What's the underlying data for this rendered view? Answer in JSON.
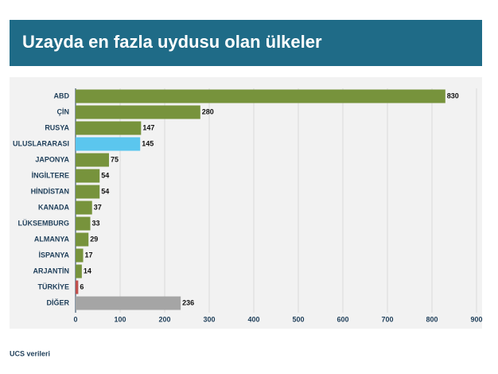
{
  "chart_data": {
    "type": "bar",
    "orientation": "horizontal",
    "title": "Uzayda en fazla uydusu olan ülkeler",
    "source": "UCS verileri",
    "categories": [
      "ABD",
      "ÇİN",
      "RUSYA",
      "ULUSLARARASI",
      "JAPONYA",
      "İNGİLTERE",
      "HİNDİSTAN",
      "KANADA",
      "LÜKSEMBURG",
      "ALMANYA",
      "İSPANYA",
      "ARJANTİN",
      "TÜRKİYE",
      "DİĞER"
    ],
    "values": [
      830,
      280,
      147,
      145,
      75,
      54,
      54,
      37,
      33,
      29,
      17,
      14,
      6,
      236
    ],
    "colors": [
      "#77933c",
      "#77933c",
      "#77933c",
      "#5bc6ee",
      "#77933c",
      "#77933c",
      "#77933c",
      "#77933c",
      "#77933c",
      "#77933c",
      "#77933c",
      "#77933c",
      "#c0504d",
      "#a5a5a5"
    ],
    "xlim": [
      0,
      900
    ],
    "xticks": [
      0,
      100,
      200,
      300,
      400,
      500,
      600,
      700,
      800,
      900
    ],
    "grid": true
  }
}
